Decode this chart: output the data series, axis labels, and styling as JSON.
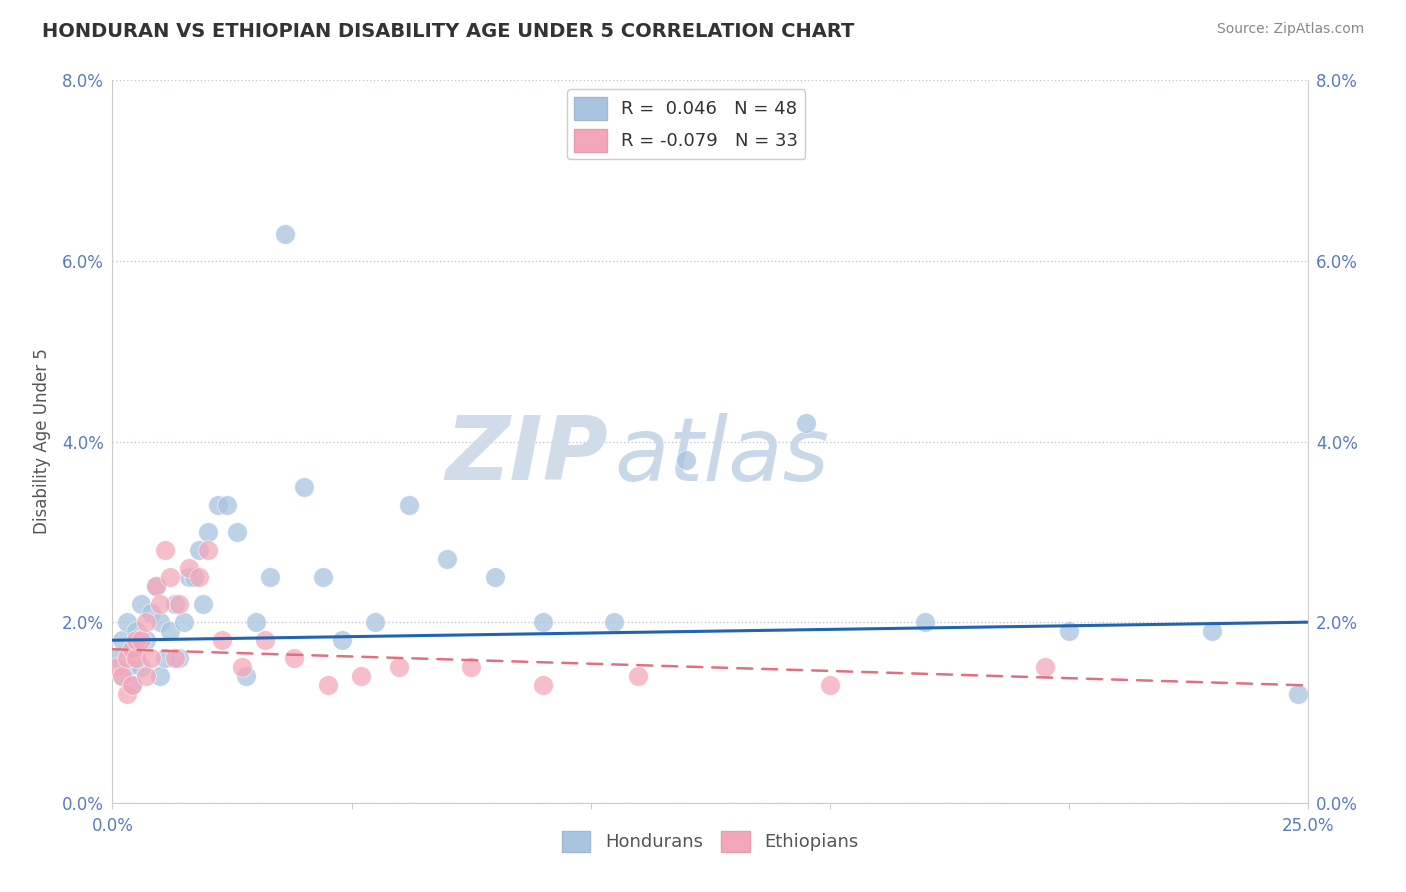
{
  "title": "HONDURAN VS ETHIOPIAN DISABILITY AGE UNDER 5 CORRELATION CHART",
  "source": "Source: ZipAtlas.com",
  "ylabel": "Disability Age Under 5",
  "xlim": [
    0.0,
    0.25
  ],
  "ylim": [
    0.0,
    0.08
  ],
  "yticks": [
    0.0,
    0.02,
    0.04,
    0.06,
    0.08
  ],
  "ytick_labels": [
    "0.0%",
    "2.0%",
    "4.0%",
    "6.0%",
    "8.0%"
  ],
  "honduran_R": 0.046,
  "honduran_N": 48,
  "ethiopian_R": -0.079,
  "ethiopian_N": 33,
  "honduran_color": "#a8c4e0",
  "ethiopian_color": "#f4a7b9",
  "honduran_line_color": "#2264b0",
  "ethiopian_line_color": "#e07080",
  "watermark_zip": "ZIP",
  "watermark_atlas": "atlas",
  "background_color": "#ffffff",
  "honduran_x": [
    0.001,
    0.002,
    0.002,
    0.003,
    0.003,
    0.004,
    0.004,
    0.005,
    0.005,
    0.006,
    0.006,
    0.007,
    0.008,
    0.009,
    0.01,
    0.01,
    0.011,
    0.012,
    0.013,
    0.014,
    0.015,
    0.016,
    0.017,
    0.018,
    0.019,
    0.02,
    0.022,
    0.024,
    0.026,
    0.028,
    0.03,
    0.033,
    0.036,
    0.04,
    0.044,
    0.048,
    0.055,
    0.062,
    0.07,
    0.08,
    0.09,
    0.105,
    0.12,
    0.145,
    0.17,
    0.2,
    0.23,
    0.248
  ],
  "honduran_y": [
    0.016,
    0.014,
    0.018,
    0.015,
    0.02,
    0.017,
    0.013,
    0.016,
    0.019,
    0.022,
    0.015,
    0.018,
    0.021,
    0.024,
    0.014,
    0.02,
    0.016,
    0.019,
    0.022,
    0.016,
    0.02,
    0.025,
    0.025,
    0.028,
    0.022,
    0.03,
    0.033,
    0.033,
    0.03,
    0.014,
    0.02,
    0.025,
    0.063,
    0.035,
    0.025,
    0.018,
    0.02,
    0.033,
    0.027,
    0.025,
    0.02,
    0.02,
    0.038,
    0.042,
    0.02,
    0.019,
    0.019,
    0.012
  ],
  "ethiopian_x": [
    0.001,
    0.002,
    0.003,
    0.003,
    0.004,
    0.004,
    0.005,
    0.005,
    0.006,
    0.007,
    0.007,
    0.008,
    0.009,
    0.01,
    0.011,
    0.012,
    0.013,
    0.014,
    0.016,
    0.018,
    0.02,
    0.023,
    0.027,
    0.032,
    0.038,
    0.045,
    0.052,
    0.06,
    0.075,
    0.09,
    0.11,
    0.15,
    0.195
  ],
  "ethiopian_y": [
    0.015,
    0.014,
    0.016,
    0.012,
    0.017,
    0.013,
    0.016,
    0.018,
    0.018,
    0.014,
    0.02,
    0.016,
    0.024,
    0.022,
    0.028,
    0.025,
    0.016,
    0.022,
    0.026,
    0.025,
    0.028,
    0.018,
    0.015,
    0.018,
    0.016,
    0.013,
    0.014,
    0.015,
    0.015,
    0.013,
    0.014,
    0.013,
    0.015
  ],
  "hond_line_x0": 0.0,
  "hond_line_y0": 0.018,
  "hond_line_x1": 0.25,
  "hond_line_y1": 0.02,
  "eth_line_x0": 0.0,
  "eth_line_y0": 0.017,
  "eth_line_x1": 0.25,
  "eth_line_y1": 0.013
}
